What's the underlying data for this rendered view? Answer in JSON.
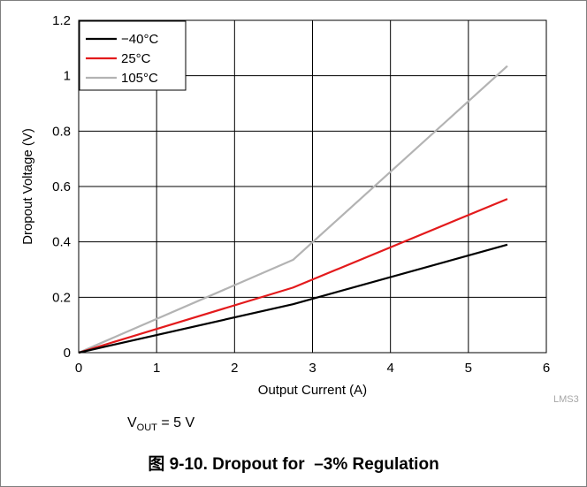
{
  "chart_data": {
    "type": "line",
    "xlabel": "Output Current (A)",
    "ylabel": "Dropout Voltage (V)",
    "xlim": [
      0,
      6
    ],
    "ylim": [
      0,
      1.2
    ],
    "xticks": [
      "0",
      "1",
      "2",
      "3",
      "4",
      "5",
      "6"
    ],
    "yticks": [
      "0",
      "0.2",
      "0.4",
      "0.6",
      "0.8",
      "1",
      "1.2"
    ],
    "grid": true,
    "legend_position": "top-left",
    "series": [
      {
        "name": "−40°C",
        "color": "#000000",
        "x": [
          0,
          2.75,
          5.5
        ],
        "y": [
          0,
          0.175,
          0.39
        ]
      },
      {
        "name": "25°C",
        "color": "#e31a1c",
        "x": [
          0,
          2.75,
          5.5
        ],
        "y": [
          0,
          0.235,
          0.555
        ]
      },
      {
        "name": "105°C",
        "color": "#b3b3b3",
        "x": [
          0,
          2.75,
          5.5
        ],
        "y": [
          0,
          0.335,
          1.035
        ]
      }
    ]
  },
  "watermark": "LMS3",
  "condition": {
    "v_main": "V",
    "v_sub": "OUT",
    "rest": " = 5 V"
  },
  "caption": "图 9-10. Dropout for  –3% Regulation"
}
